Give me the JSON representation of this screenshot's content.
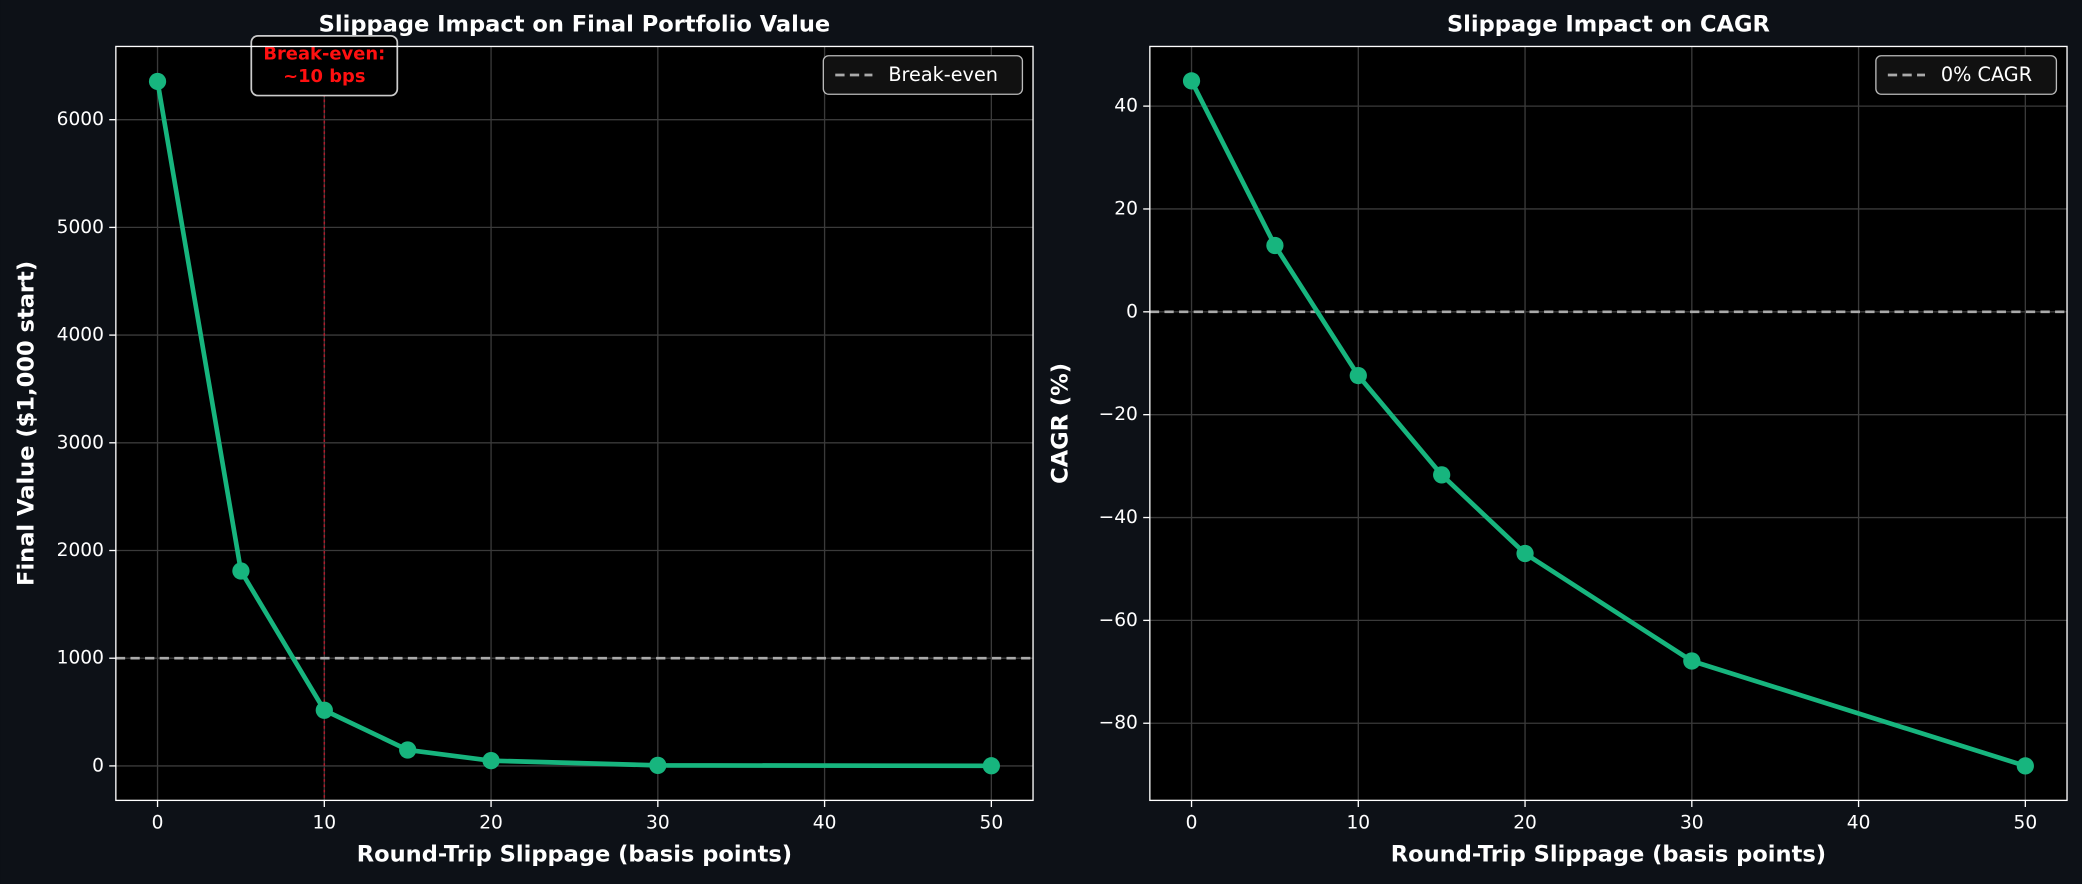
{
  "chart_data": [
    {
      "type": "line",
      "title": "Slippage Impact on Final Portfolio Value",
      "x_label": "Round-Trip Slippage (basis points)",
      "y_label": "Final Value ($1,000 start)",
      "x": [
        0,
        5,
        10,
        15,
        20,
        30,
        50
      ],
      "series": [
        {
          "color": "#17b57e",
          "values": [
            6355,
            1810,
            517,
            148,
            49,
            5,
            1
          ]
        }
      ],
      "xlim": [
        -2.5,
        52.5
      ],
      "ylim": [
        -320,
        6680
      ],
      "xticks": [
        0,
        10,
        20,
        30,
        40,
        50
      ],
      "yticks": [
        0,
        1000,
        2000,
        3000,
        4000,
        5000,
        6000
      ],
      "hlines": [
        {
          "y": 1000,
          "label": "Break-even",
          "color": "#aaaaaa"
        }
      ],
      "vlines": [
        {
          "x": 10,
          "color": "#e0102a"
        }
      ],
      "annotations": [
        {
          "x": 10,
          "lines": [
            "Break-even:",
            "~10 bps"
          ],
          "color": "#ff1010"
        }
      ],
      "grid": true,
      "legend": "upper right"
    },
    {
      "type": "line",
      "title": "Slippage Impact on CAGR",
      "x_label": "Round-Trip Slippage (basis points)",
      "y_label": "CAGR (%)",
      "x": [
        0,
        5,
        10,
        15,
        20,
        30,
        50
      ],
      "series": [
        {
          "color": "#17b57e",
          "values": [
            44.9,
            12.9,
            -12.4,
            -31.7,
            -47,
            -67.9,
            -88.3
          ]
        }
      ],
      "xlim": [
        -2.5,
        52.5
      ],
      "ylim": [
        -95,
        51.6
      ],
      "xticks": [
        0,
        10,
        20,
        30,
        40,
        50
      ],
      "yticks": [
        {
          "value": -80,
          "label": "−80"
        },
        {
          "value": -60,
          "label": "−60"
        },
        {
          "value": -40,
          "label": "−40"
        },
        {
          "value": -20,
          "label": "−20"
        },
        0,
        20,
        40
      ],
      "hlines": [
        {
          "y": 0,
          "label": "0% CAGR",
          "color": "#aaaaaa"
        }
      ],
      "grid": true,
      "legend": "upper right"
    }
  ]
}
